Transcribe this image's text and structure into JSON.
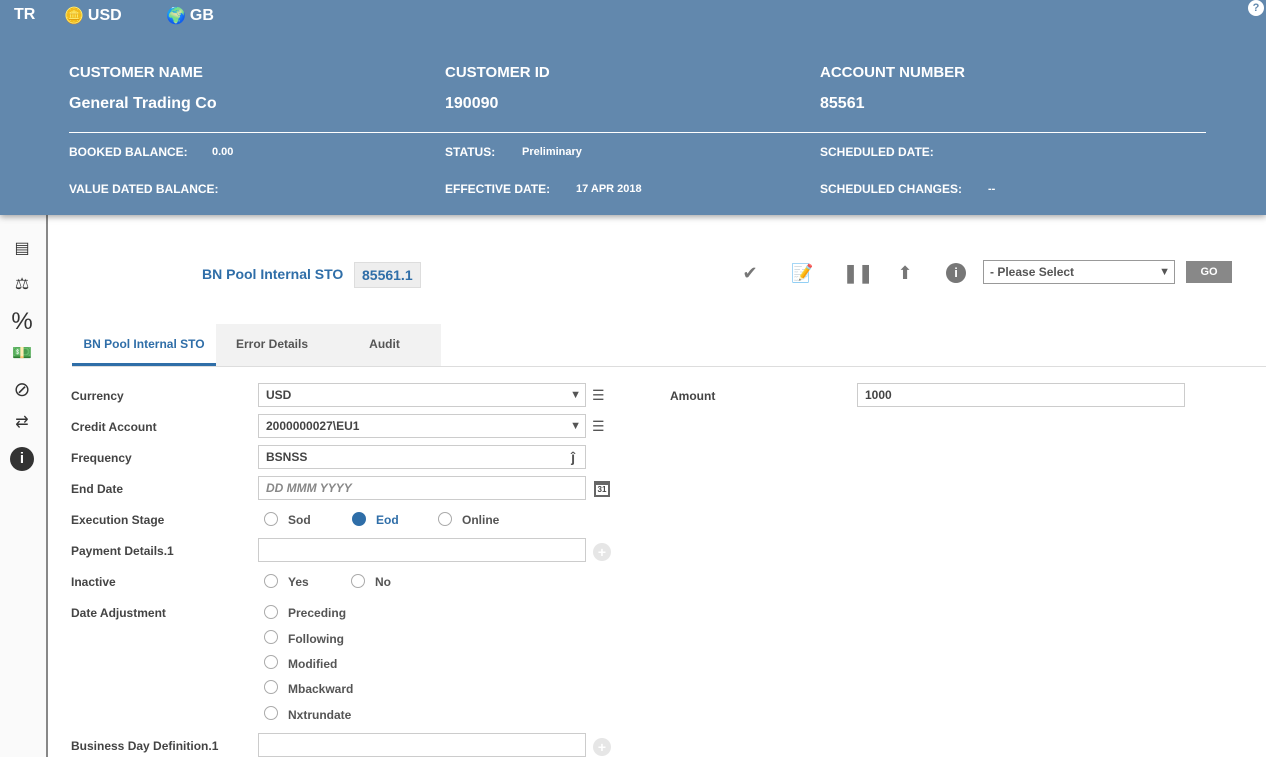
{
  "topbar": {
    "lang": "TR",
    "currency": "USD",
    "region": "GB",
    "help": "?"
  },
  "header": {
    "customer_name_label": "CUSTOMER NAME",
    "customer_name": "General Trading Co",
    "customer_id_label": "CUSTOMER ID",
    "customer_id": "190090",
    "account_number_label": "ACCOUNT NUMBER",
    "account_number": "85561",
    "booked_balance_label": "BOOKED BALANCE:",
    "booked_balance": "0.00",
    "status_label": "STATUS:",
    "status": "Preliminary",
    "scheduled_date_label": "SCHEDULED DATE:",
    "value_dated_balance_label": "VALUE DATED BALANCE:",
    "effective_date_label": "EFFECTIVE DATE:",
    "effective_date": "17 APR 2018",
    "scheduled_changes_label": "SCHEDULED CHANGES:",
    "scheduled_changes": "--"
  },
  "sidebar": [
    "transfer-card-icon",
    "balance-scale-icon",
    "percent-icon",
    "cash-hand-icon",
    "ban-icon",
    "money-exchange-icon",
    "info-icon"
  ],
  "record": {
    "title": "BN Pool Internal STO",
    "id": "85561.1"
  },
  "toolbar": {
    "select_placeholder": "- Please Select",
    "go": "GO"
  },
  "tabs": [
    "BN Pool Internal STO",
    "Error Details",
    "Audit"
  ],
  "form": {
    "currency_label": "Currency",
    "currency": "USD",
    "credit_account_label": "Credit Account",
    "credit_account": "2000000027\\EU1",
    "frequency_label": "Frequency",
    "frequency": "BSNSS",
    "end_date_label": "End Date",
    "end_date_placeholder": "DD MMM YYYY",
    "execution_stage_label": "Execution Stage",
    "execution_options": [
      "Sod",
      "Eod",
      "Online"
    ],
    "execution_selected": "Eod",
    "payment_details_label": "Payment Details.1",
    "inactive_label": "Inactive",
    "inactive_options": [
      "Yes",
      "No"
    ],
    "date_adjustment_label": "Date Adjustment",
    "date_adjustment_options": [
      "Preceding",
      "Following",
      "Modified",
      "Mbackward",
      "Nxtrundate"
    ],
    "business_day_label": "Business Day Definition.1",
    "amount_label": "Amount",
    "amount": "1000"
  },
  "colors": {
    "header": "#6288ad",
    "accent": "#2f6ea8"
  }
}
